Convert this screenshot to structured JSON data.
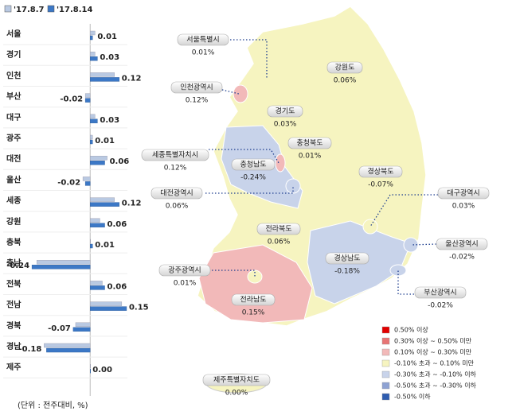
{
  "chart_data": {
    "type": "bar",
    "orientation": "horizontal",
    "categories": [
      "서울",
      "경기",
      "인천",
      "부산",
      "대구",
      "광주",
      "대전",
      "울산",
      "세종",
      "강원",
      "충북",
      "충남",
      "전북",
      "전남",
      "경북",
      "경남",
      "제주"
    ],
    "series": [
      {
        "name": "'17.8.7",
        "color": "#b9c9e2",
        "values": [
          0.02,
          0.02,
          0.1,
          -0.02,
          0.02,
          0.01,
          0.07,
          -0.03,
          0.1,
          0.04,
          0.0,
          -0.22,
          0.05,
          0.13,
          -0.06,
          -0.19,
          0.0
        ]
      },
      {
        "name": "'17.8.14",
        "color": "#3c78c6",
        "values": [
          0.01,
          0.03,
          0.12,
          -0.02,
          0.03,
          0.01,
          0.06,
          -0.02,
          0.12,
          0.06,
          0.01,
          -0.24,
          0.06,
          0.15,
          -0.07,
          -0.18,
          0.0
        ],
        "value_labels": [
          "0.01",
          "0.03",
          "0.12",
          "-0.02",
          "0.03",
          "0.01",
          "0.06",
          "-0.02",
          "0.12",
          "0.06",
          "0.01",
          "-0.24",
          "0.06",
          "0.15",
          "-0.07",
          "-0.18",
          "0.00"
        ]
      }
    ],
    "xlim": [
      -0.26,
      0.16
    ],
    "unit_note": "(단위 : 전주대비, %)"
  },
  "map": {
    "regions": [
      {
        "name": "서울특별시",
        "value": "0.01%"
      },
      {
        "name": "인천광역시",
        "value": "0.12%"
      },
      {
        "name": "세종특별자치시",
        "value": "0.12%"
      },
      {
        "name": "대전광역시",
        "value": "0.06%"
      },
      {
        "name": "광주광역시",
        "value": "0.01%"
      },
      {
        "name": "대구광역시",
        "value": "0.03%"
      },
      {
        "name": "울산광역시",
        "value": "-0.02%"
      },
      {
        "name": "부산광역시",
        "value": "-0.02%"
      },
      {
        "name": "제주특별자치도",
        "value": "0.00%"
      },
      {
        "name": "강원도",
        "value": "0.06%"
      },
      {
        "name": "경기도",
        "value": "0.03%"
      },
      {
        "name": "충청북도",
        "value": "0.01%"
      },
      {
        "name": "충청남도",
        "value": "-0.24%"
      },
      {
        "name": "경상북도",
        "value": "-0.07%"
      },
      {
        "name": "전라북도",
        "value": "0.06%"
      },
      {
        "name": "경상남도",
        "value": "-0.18%"
      },
      {
        "name": "전라남도",
        "value": "0.15%"
      }
    ],
    "legend": [
      {
        "color": "#e00000",
        "label": "0.50% 이상"
      },
      {
        "color": "#e77575",
        "label": "0.30% 이상 ~ 0.50% 미만"
      },
      {
        "color": "#f2b9b9",
        "label": "0.10% 이상 ~ 0.30% 미만"
      },
      {
        "color": "#f6f4c0",
        "label": "-0.10% 초과 ~ 0.10% 미만"
      },
      {
        "color": "#c8d3ea",
        "label": "-0.30% 초과 ~ -0.10% 이하"
      },
      {
        "color": "#8ea2d3",
        "label": "-0.50% 초과 ~ -0.30% 이하"
      },
      {
        "color": "#2f5db0",
        "label": "-0.50% 이하"
      }
    ]
  }
}
